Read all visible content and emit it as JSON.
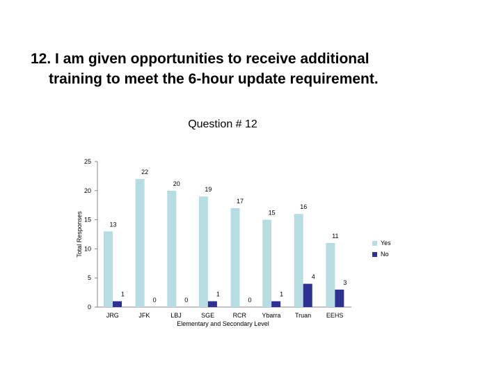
{
  "slide": {
    "title_line1": "12.  I am given opportunities to receive additional",
    "title_line2": "training to meet the 6-hour update requirement."
  },
  "chart_data": {
    "type": "bar",
    "title": "Question # 12",
    "xlabel": "Elementary and Secondary Level",
    "ylabel": "Total Responses",
    "ylim": [
      0,
      25
    ],
    "yticks": [
      0,
      5,
      10,
      15,
      20,
      25
    ],
    "categories": [
      "JRG",
      "JFK",
      "LBJ",
      "SGE",
      "RCR",
      "Ybarra",
      "Truan",
      "EEHS"
    ],
    "series": [
      {
        "name": "Yes",
        "color": "#b6dde1",
        "values": [
          13,
          22,
          20,
          19,
          17,
          15,
          16,
          11
        ]
      },
      {
        "name": "No",
        "color": "#2e3192",
        "values": [
          1,
          0,
          0,
          1,
          0,
          1,
          4,
          3
        ]
      }
    ],
    "grid": false,
    "legend_position": "right"
  }
}
